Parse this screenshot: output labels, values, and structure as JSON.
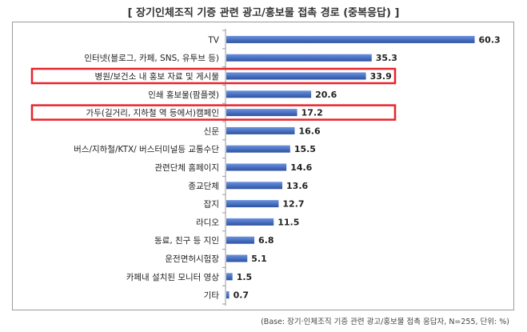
{
  "chart_data": {
    "type": "bar",
    "orientation": "horizontal",
    "title": "[ 장기인체조직 기증 관련 광고/홍보물 접촉 경로 (중복응답) ]",
    "footnote": "(Base: 장기·인체조직 기증 관련 광고/홍보물 접촉 응답자, N=255, 단위: %)",
    "categories": [
      "TV",
      "인터넷(블로그, 카페, SNS, 유투브 등)",
      "병원/보건소 내 홍보 자료 및 게시물",
      "인쇄 홍보물(팜플렛)",
      "가두(길거리, 지하철 역 등에서)캠페인",
      "신문",
      "버스/지하철/KTX/ 버스터미널등 교통수단",
      "관련단체 홈페이지",
      "종교단체",
      "잡지",
      "라디오",
      "동료, 친구 등 지인",
      "운전면허시험장",
      "카페내 설치된 모니터 영상",
      "기타"
    ],
    "values": [
      60.3,
      35.3,
      33.9,
      20.6,
      17.2,
      16.6,
      15.5,
      14.6,
      13.6,
      12.7,
      11.5,
      6.8,
      5.1,
      1.5,
      0.7
    ],
    "value_labels": [
      "60.3",
      "35.3",
      "33.9",
      "20.6",
      "17.2",
      "16.6",
      "15.5",
      "14.6",
      "13.6",
      "12.7",
      "11.5",
      "6.8",
      "5.1",
      "1.5",
      "0.7"
    ],
    "xlim": [
      0,
      70
    ],
    "highlighted": [
      "병원/보건소 내 홍보 자료 및 게시물",
      "가두(길거리, 지하철 역 등에서)캠페인"
    ],
    "grid": false,
    "bar_color": "#4a72c4",
    "highlight_color": "#e8242c",
    "axis_color": "#999999"
  }
}
